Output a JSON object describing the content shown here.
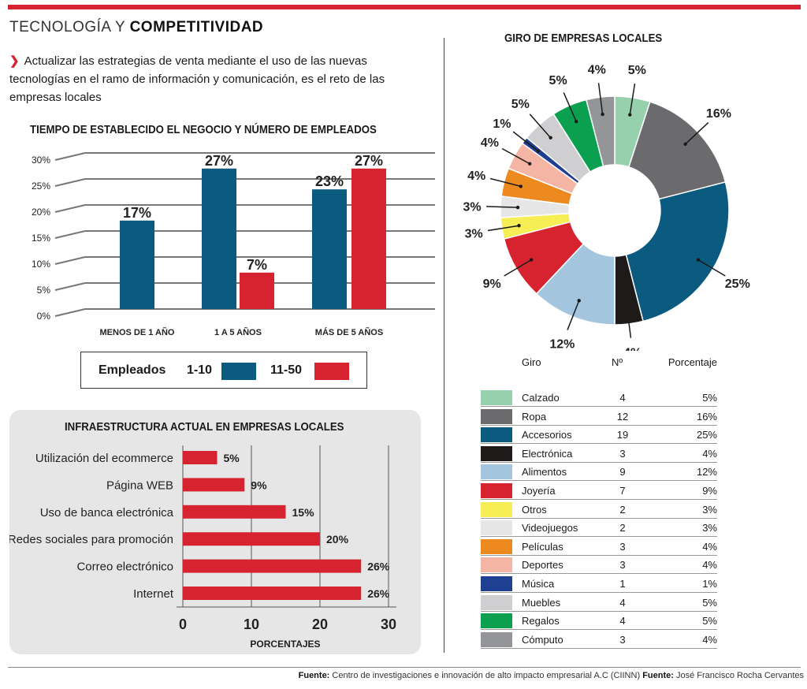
{
  "header": {
    "title_light": "TECNOLOGÍA Y",
    "title_bold": "COMPETITIVIDAD",
    "lead": "Actualizar las estrategias de venta mediante el uso de las nuevas tecnologías en el ramo de información y comunicación, es el reto de las empresas locales"
  },
  "colors": {
    "accent_red": "#d7232f",
    "blue": "#0b5a80"
  },
  "chart_data": [
    {
      "type": "bar",
      "title": "TIEMPO DE ESTABLECIDO EL NEGOCIO Y NÚMERO DE EMPLEADOS",
      "categories": [
        "MENOS DE 1 AÑO",
        "1 A 5 AÑOS",
        "MÁS DE 5 AÑOS"
      ],
      "series": [
        {
          "name": "1-10",
          "color": "#0b5a80",
          "values": [
            17,
            27,
            23
          ],
          "labels": [
            "17%",
            "27%",
            "23%"
          ]
        },
        {
          "name": "11-50",
          "color": "#d7232f",
          "values": [
            null,
            7,
            27
          ],
          "labels": [
            "",
            "7%",
            "27%"
          ]
        }
      ],
      "y_ticks": [
        "0%",
        "5%",
        "10%",
        "15%",
        "20%",
        "25%",
        "30%"
      ],
      "ylim": [
        0,
        30
      ],
      "legend_title": "Empleados",
      "legend_placement": "bottom"
    },
    {
      "type": "bar",
      "orientation": "horizontal",
      "title": "INFRAESTRUCTURA ACTUAL EN EMPRESAS LOCALES",
      "categories": [
        "Utilización del ecommerce",
        "Página WEB",
        "Uso de banca electrónica",
        "Redes sociales para promoción",
        "Correo electrónico",
        "Internet"
      ],
      "values": [
        5,
        9,
        15,
        20,
        26,
        26
      ],
      "labels": [
        "5%",
        "9%",
        "15%",
        "20%",
        "26%",
        "26%"
      ],
      "x_ticks": [
        "0",
        "10",
        "20",
        "30"
      ],
      "xlim": [
        0,
        30
      ],
      "xlabel": "PORCENTAJES",
      "color": "#d7232f"
    },
    {
      "type": "pie",
      "title": "GIRO DE EMPRESAS LOCALES",
      "headers": [
        "Giro",
        "Nº",
        "Porcentaje"
      ],
      "slices": [
        {
          "name": "Calzado",
          "count": "4",
          "value": 5,
          "label": "5%",
          "color": "#96d0ad"
        },
        {
          "name": "Ropa",
          "count": "12",
          "value": 16,
          "label": "16%",
          "color": "#6b6b6d"
        },
        {
          "name": "Accesorios",
          "count": "19",
          "value": 25,
          "label": "25%",
          "color": "#0b5a80"
        },
        {
          "name": "Electrónica",
          "count": "3",
          "value": 4,
          "label": "4%",
          "color": "#1e1a1a"
        },
        {
          "name": "Alimentos",
          "count": "9",
          "value": 12,
          "label": "12%",
          "color": "#a3c6de"
        },
        {
          "name": "Joyería",
          "count": "7",
          "value": 9,
          "label": "9%",
          "color": "#d7232f"
        },
        {
          "name": "Otros",
          "count": "2",
          "value": 3,
          "label": "3%",
          "color": "#f7ee55"
        },
        {
          "name": "Videojuegos",
          "count": "2",
          "value": 3,
          "label": "3%",
          "color": "#e6e6e6"
        },
        {
          "name": "Películas",
          "count": "3",
          "value": 4,
          "label": "4%",
          "color": "#ec8a1f"
        },
        {
          "name": "Deportes",
          "count": "3",
          "value": 4,
          "label": "4%",
          "color": "#f5b5a4"
        },
        {
          "name": "Música",
          "count": "1",
          "value": 1,
          "label": "1%",
          "color": "#1f3f93"
        },
        {
          "name": "Muebles",
          "count": "4",
          "value": 5,
          "label": "5%",
          "color": "#cfcfd1"
        },
        {
          "name": "Regalos",
          "count": "4",
          "value": 5,
          "label": "5%",
          "color": "#0aa050"
        },
        {
          "name": "Cómputo",
          "count": "3",
          "value": 4,
          "label": "4%",
          "color": "#939598"
        }
      ]
    }
  ],
  "footer": {
    "label1": "Fuente:",
    "text1": "Centro de investigaciones e innovación de alto impacto empresarial A.C (CIINN)",
    "label2": "Fuente:",
    "text2": "José Francisco Rocha Cervantes"
  }
}
